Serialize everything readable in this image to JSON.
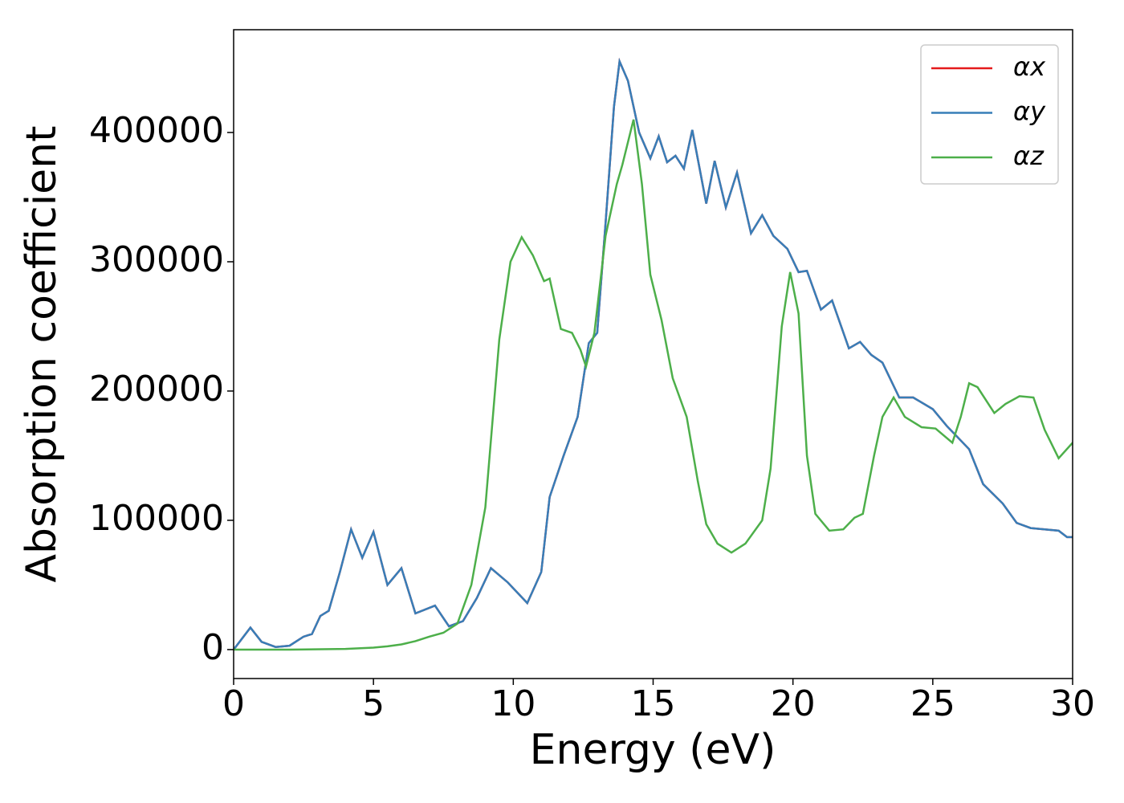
{
  "chart_data": {
    "type": "line",
    "xlabel": "Energy (eV)",
    "ylabel": "Absorption coefficient",
    "xlim": [
      0,
      30
    ],
    "xticks": [
      0,
      5,
      10,
      15,
      20,
      25,
      30
    ],
    "ylim": [
      -22400,
      479500
    ],
    "yticks": [
      0,
      100000,
      200000,
      300000,
      400000
    ],
    "legend": "upper right",
    "series": [
      {
        "name": "αx",
        "color": "#e41a1c",
        "x": [
          0,
          0.6,
          1,
          1.5,
          2,
          2.5,
          2.8,
          3.1,
          3.4,
          3.8,
          4.2,
          4.6,
          5.0,
          5.5,
          6.0,
          6.5,
          7.2,
          7.7,
          8.2,
          8.7,
          9.2,
          9.8,
          10.5,
          11.0,
          11.3,
          11.8,
          12.3,
          12.7,
          13.0,
          13.3,
          13.6,
          13.8,
          14.1,
          14.5,
          14.9,
          15.2,
          15.5,
          15.8,
          16.1,
          16.4,
          16.9,
          17.2,
          17.6,
          18.0,
          18.5,
          18.9,
          19.3,
          19.8,
          20.2,
          20.5,
          21.0,
          21.4,
          22.0,
          22.4,
          22.8,
          23.2,
          23.8,
          24.3,
          25.0,
          25.5,
          26.3,
          26.8,
          27.5,
          28.0,
          28.5,
          29.0,
          29.5,
          29.8,
          30
        ],
        "values": [
          0,
          17000,
          6000,
          2000,
          3000,
          10000,
          12000,
          26000,
          30000,
          60000,
          93000,
          71000,
          91000,
          50000,
          63000,
          28000,
          34000,
          18000,
          22000,
          40000,
          63000,
          52000,
          36000,
          60000,
          118000,
          150000,
          180000,
          237000,
          245000,
          330000,
          420000,
          455000,
          440000,
          400000,
          380000,
          397000,
          377000,
          382000,
          372000,
          402000,
          345000,
          378000,
          342000,
          369000,
          322000,
          336000,
          320000,
          310000,
          292000,
          293000,
          263000,
          270000,
          233000,
          238000,
          228000,
          222000,
          195000,
          195000,
          186000,
          173000,
          155000,
          128000,
          113000,
          98000,
          94000,
          93000,
          92000,
          87000,
          87000
        ]
      },
      {
        "name": "αy",
        "color": "#377eb8",
        "x": [
          0,
          0.6,
          1,
          1.5,
          2,
          2.5,
          2.8,
          3.1,
          3.4,
          3.8,
          4.2,
          4.6,
          5.0,
          5.5,
          6.0,
          6.5,
          7.2,
          7.7,
          8.2,
          8.7,
          9.2,
          9.8,
          10.5,
          11.0,
          11.3,
          11.8,
          12.3,
          12.7,
          13.0,
          13.3,
          13.6,
          13.8,
          14.1,
          14.5,
          14.9,
          15.2,
          15.5,
          15.8,
          16.1,
          16.4,
          16.9,
          17.2,
          17.6,
          18.0,
          18.5,
          18.9,
          19.3,
          19.8,
          20.2,
          20.5,
          21.0,
          21.4,
          22.0,
          22.4,
          22.8,
          23.2,
          23.8,
          24.3,
          25.0,
          25.5,
          26.3,
          26.8,
          27.5,
          28.0,
          28.5,
          29.0,
          29.5,
          29.8,
          30
        ],
        "values": [
          0,
          17000,
          6000,
          2000,
          3000,
          10000,
          12000,
          26000,
          30000,
          60000,
          93000,
          71000,
          91000,
          50000,
          63000,
          28000,
          34000,
          18000,
          22000,
          40000,
          63000,
          52000,
          36000,
          60000,
          118000,
          150000,
          180000,
          237000,
          245000,
          330000,
          420000,
          455000,
          440000,
          400000,
          380000,
          397000,
          377000,
          382000,
          372000,
          402000,
          345000,
          378000,
          342000,
          369000,
          322000,
          336000,
          320000,
          310000,
          292000,
          293000,
          263000,
          270000,
          233000,
          238000,
          228000,
          222000,
          195000,
          195000,
          186000,
          173000,
          155000,
          128000,
          113000,
          98000,
          94000,
          93000,
          92000,
          87000,
          87000
        ]
      },
      {
        "name": "αz",
        "color": "#4daf4a",
        "x": [
          0,
          2,
          4,
          5,
          5.5,
          6,
          6.5,
          7,
          7.5,
          8,
          8.5,
          9.0,
          9.5,
          9.9,
          10.3,
          10.7,
          11.1,
          11.3,
          11.7,
          12.1,
          12.4,
          12.6,
          12.9,
          13.3,
          13.7,
          13.9,
          14.3,
          14.6,
          14.9,
          15.3,
          15.7,
          16.2,
          16.6,
          16.9,
          17.3,
          17.8,
          18.3,
          18.9,
          19.2,
          19.6,
          19.9,
          20.2,
          20.5,
          20.8,
          21.3,
          21.8,
          22.2,
          22.5,
          22.9,
          23.2,
          23.6,
          24.0,
          24.6,
          25.1,
          25.7,
          26.0,
          26.3,
          26.6,
          27.2,
          27.6,
          28.1,
          28.6,
          29.0,
          29.5,
          30
        ],
        "values": [
          0,
          0,
          500,
          1500,
          2500,
          4000,
          6500,
          10000,
          13000,
          20000,
          50000,
          110000,
          240000,
          300000,
          319000,
          305000,
          285000,
          287000,
          248000,
          245000,
          232000,
          219000,
          245000,
          320000,
          360000,
          375000,
          410000,
          360000,
          290000,
          255000,
          210000,
          180000,
          130000,
          97000,
          82000,
          75000,
          82000,
          100000,
          140000,
          250000,
          292000,
          260000,
          150000,
          105000,
          92000,
          93000,
          102000,
          105000,
          150000,
          180000,
          195000,
          180000,
          172000,
          171000,
          160000,
          180000,
          206000,
          203000,
          183000,
          190000,
          196000,
          195000,
          170000,
          148000,
          160000
        ]
      }
    ]
  }
}
